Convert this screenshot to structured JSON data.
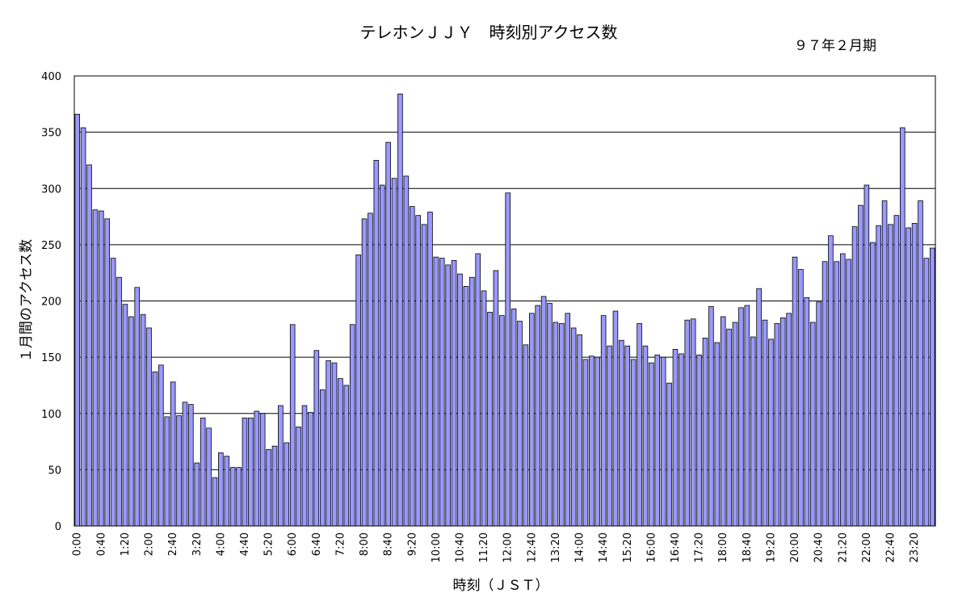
{
  "chart_data": {
    "type": "bar",
    "title": "テレホンＪＪＹ　時刻別アクセス数",
    "subtitle": "９７年２月期",
    "xlabel": "時刻（ＪＳＴ）",
    "ylabel": "１月間のアクセス数",
    "ylim": [
      0,
      400
    ],
    "yticks": [
      0,
      50,
      100,
      150,
      200,
      250,
      300,
      350,
      400
    ],
    "grid": true,
    "bar_color": "#9999FF",
    "interval_minutes": 10,
    "x_tick_labels": [
      "0:00",
      "0:40",
      "1:20",
      "2:00",
      "2:40",
      "3:20",
      "4:00",
      "4:40",
      "5:20",
      "6:00",
      "6:40",
      "7:20",
      "8:00",
      "8:40",
      "9:20",
      "10:00",
      "10:40",
      "11:20",
      "12:00",
      "12:40",
      "13:20",
      "14:00",
      "14:40",
      "15:20",
      "16:00",
      "16:40",
      "17:20",
      "18:00",
      "18:40",
      "19:20",
      "20:00",
      "20:40",
      "21:20",
      "22:00",
      "22:40",
      "23:20"
    ],
    "values": [
      366,
      354,
      321,
      281,
      280,
      273,
      238,
      221,
      197,
      186,
      212,
      188,
      176,
      137,
      143,
      97,
      128,
      98,
      110,
      108,
      56,
      96,
      87,
      43,
      65,
      62,
      52,
      52,
      96,
      96,
      102,
      100,
      68,
      71,
      107,
      74,
      179,
      88,
      107,
      101,
      156,
      121,
      147,
      145,
      131,
      125,
      179,
      241,
      273,
      278,
      325,
      303,
      341,
      309,
      384,
      311,
      284,
      276,
      268,
      279,
      239,
      238,
      232,
      236,
      224,
      213,
      221,
      242,
      209,
      190,
      227,
      187,
      296,
      193,
      182,
      161,
      189,
      196,
      204,
      198,
      181,
      180,
      189,
      176,
      170,
      148,
      151,
      150,
      187,
      160,
      191,
      165,
      160,
      148,
      180,
      160,
      145,
      152,
      150,
      127,
      157,
      153,
      183,
      184,
      152,
      167,
      195,
      163,
      186,
      175,
      181,
      194,
      196,
      168,
      211,
      183,
      166,
      180,
      185,
      189,
      239,
      228,
      203,
      181,
      199,
      235,
      258,
      235,
      242,
      237,
      266,
      285,
      303,
      252,
      267,
      289,
      268,
      276,
      354,
      265,
      269,
      289,
      238,
      247
    ]
  }
}
